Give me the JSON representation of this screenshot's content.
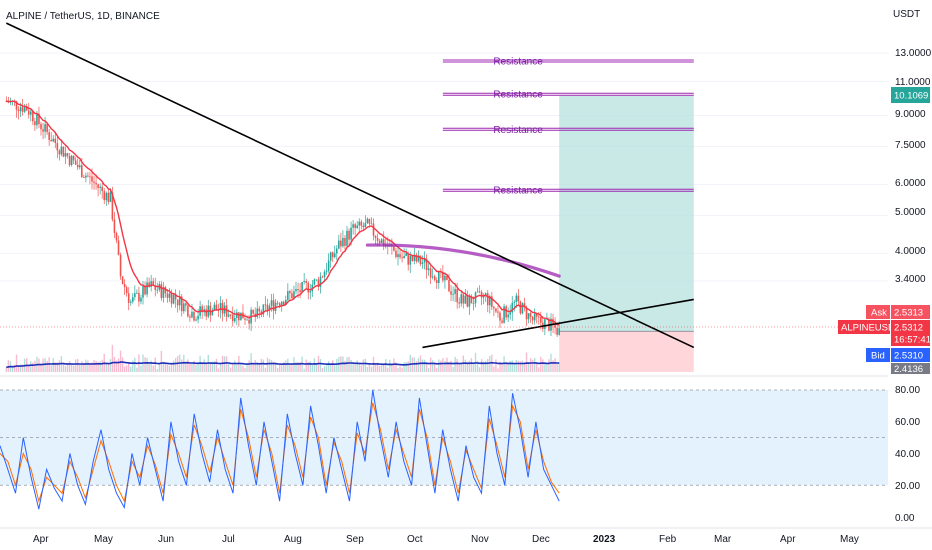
{
  "header": {
    "symbol": "ALPINE / TetherUS, 1D, BINANCE"
  },
  "price_axis": {
    "unit": "USDT",
    "ticks": [
      "13.0000",
      "11.0000",
      "9.0000",
      "7.5000",
      "6.0000",
      "5.0000",
      "4.0000",
      "3.4000"
    ]
  },
  "price_tags": {
    "target": "10.1069",
    "ask_label": "Ask",
    "ask_value": "2.5313",
    "symbol_label": "ALPINEUSDT",
    "last_value": "2.5312",
    "countdown": "16:57:41",
    "bid_label": "Bid",
    "bid_value": "2.5310",
    "stop_value": "2.4136"
  },
  "resistance_labels": [
    "Resistance",
    "Resistance",
    "Resistance",
    "Resistance"
  ],
  "time_axis": {
    "labels": [
      "Apr",
      "May",
      "Jun",
      "Jul",
      "Aug",
      "Sep",
      "Oct",
      "Nov",
      "Dec",
      "2023",
      "Feb",
      "Mar",
      "Apr",
      "May"
    ]
  },
  "oscillator_axis": {
    "ticks": [
      "80.00",
      "60.00",
      "40.00",
      "20.00",
      "0.00"
    ]
  },
  "colors": {
    "candle_up": "#26a69a",
    "candle_down": "#ef5350",
    "ema": "#f23645",
    "slow_ma": "#9c27b0",
    "volume_ma": "#1e2fb8",
    "trendline": "#000000",
    "resistance": "#9c27b0",
    "profit_zone": "#b2dfdb",
    "loss_zone": "#ffcdd2",
    "stoch_k": "#2962ff",
    "stoch_d": "#ff6d00",
    "stoch_band": "#e3f2fd"
  },
  "chart_data": [
    {
      "type": "candlestick",
      "title": "ALPINE / TetherUS, 1D, BINANCE",
      "ylabel": "USDT",
      "ylim": [
        2.4,
        14
      ],
      "y_scale": "log",
      "x_range": [
        "2022-03-15",
        "2023-05-31"
      ],
      "approximate_close_path": [
        {
          "date": "2022-03-15",
          "close": 9.8
        },
        {
          "date": "2022-03-25",
          "close": 9.4
        },
        {
          "date": "2022-04-05",
          "close": 8.0
        },
        {
          "date": "2022-04-15",
          "close": 7.0
        },
        {
          "date": "2022-04-25",
          "close": 6.2
        },
        {
          "date": "2022-05-05",
          "close": 5.5
        },
        {
          "date": "2022-05-10",
          "close": 3.5
        },
        {
          "date": "2022-05-15",
          "close": 3.0
        },
        {
          "date": "2022-05-25",
          "close": 3.3
        },
        {
          "date": "2022-06-05",
          "close": 3.1
        },
        {
          "date": "2022-06-15",
          "close": 2.8
        },
        {
          "date": "2022-06-25",
          "close": 2.9
        },
        {
          "date": "2022-07-05",
          "close": 2.8
        },
        {
          "date": "2022-07-15",
          "close": 2.75
        },
        {
          "date": "2022-07-25",
          "close": 3.0
        },
        {
          "date": "2022-08-05",
          "close": 3.2
        },
        {
          "date": "2022-08-15",
          "close": 3.4
        },
        {
          "date": "2022-08-25",
          "close": 4.2
        },
        {
          "date": "2022-09-01",
          "close": 4.6
        },
        {
          "date": "2022-09-08",
          "close": 4.7
        },
        {
          "date": "2022-09-15",
          "close": 4.3
        },
        {
          "date": "2022-09-25",
          "close": 3.9
        },
        {
          "date": "2022-10-05",
          "close": 3.8
        },
        {
          "date": "2022-10-15",
          "close": 3.4
        },
        {
          "date": "2022-10-25",
          "close": 3.0
        },
        {
          "date": "2022-11-05",
          "close": 3.1
        },
        {
          "date": "2022-11-12",
          "close": 2.75
        },
        {
          "date": "2022-11-20",
          "close": 3.0
        },
        {
          "date": "2022-11-28",
          "close": 2.7
        },
        {
          "date": "2022-12-05",
          "close": 2.65
        },
        {
          "date": "2022-12-11",
          "close": 2.53
        }
      ],
      "indicators": [
        {
          "name": "Moving average (red)",
          "color": "#f23645"
        },
        {
          "name": "Moving average (purple)",
          "from": [
            "2022-09-08",
            4.2
          ],
          "to": [
            "2022-12-11",
            3.5
          ]
        },
        {
          "name": "Volume moving average (blue)"
        }
      ],
      "annotations": [
        {
          "type": "descending trendline",
          "from": [
            "2022-03-15",
            15.5
          ],
          "to": [
            "2023-02-15",
            2.3
          ]
        },
        {
          "type": "ascending trendline",
          "from": [
            "2022-10-05",
            2.3
          ],
          "to": [
            "2023-02-15",
            3.05
          ]
        },
        {
          "type": "resistance",
          "label": "Resistance",
          "value": 12.4,
          "from": "2022-10-15",
          "to": "2023-02-15"
        },
        {
          "type": "resistance",
          "label": "Resistance",
          "value": 10.2,
          "from": "2022-10-15",
          "to": "2023-02-15"
        },
        {
          "type": "resistance",
          "label": "Resistance",
          "value": 8.3,
          "from": "2022-10-15",
          "to": "2023-02-15"
        },
        {
          "type": "resistance",
          "label": "Resistance",
          "value": 5.8,
          "from": "2022-10-15",
          "to": "2023-02-15"
        },
        {
          "type": "long position",
          "entry": 2.53,
          "target": 10.1069,
          "stop": 2.4136,
          "from": "2022-12-11",
          "to": "2023-02-15"
        }
      ],
      "last_price": 2.5312,
      "ask": 2.5313,
      "bid": 2.531
    },
    {
      "type": "line",
      "title": "",
      "ylim": [
        0,
        85
      ],
      "yticks": [
        0,
        20,
        40,
        60,
        80
      ],
      "grid": "dashed lines at 20, 50 and 80",
      "band": [
        20,
        80
      ],
      "series": [
        {
          "values": [
            45,
            30,
            15,
            50,
            25,
            5,
            30,
            18,
            10,
            40,
            20,
            8,
            35,
            55,
            30,
            15,
            6,
            40,
            20,
            50,
            30,
            10,
            60,
            35,
            20,
            65,
            40,
            22,
            55,
            30,
            15,
            75,
            45,
            20,
            60,
            35,
            10,
            65,
            40,
            20,
            70,
            45,
            15,
            50,
            30,
            10,
            60,
            35,
            80,
            50,
            25,
            60,
            35,
            20,
            75,
            45,
            15,
            55,
            30,
            10,
            45,
            25,
            15,
            70,
            40,
            20,
            78,
            55,
            25,
            60,
            30,
            20,
            10
          ]
        },
        {
          "values": [
            40,
            35,
            20,
            40,
            30,
            10,
            25,
            20,
            15,
            35,
            25,
            12,
            30,
            48,
            35,
            20,
            10,
            35,
            25,
            45,
            33,
            15,
            52,
            40,
            25,
            58,
            45,
            28,
            50,
            35,
            20,
            68,
            50,
            25,
            55,
            40,
            15,
            58,
            45,
            25,
            63,
            50,
            20,
            47,
            35,
            15,
            53,
            40,
            72,
            55,
            30,
            55,
            40,
            25,
            68,
            50,
            20,
            50,
            35,
            15,
            42,
            30,
            18,
            62,
            45,
            25,
            70,
            60,
            30,
            55,
            35,
            22,
            15
          ]
        }
      ]
    }
  ]
}
